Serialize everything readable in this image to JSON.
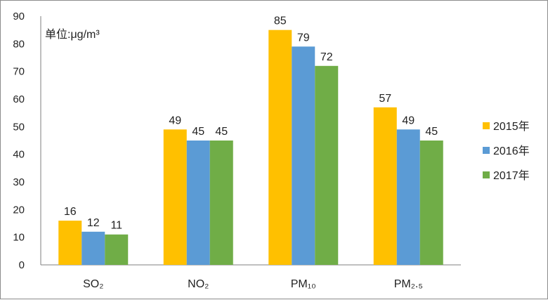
{
  "chart_data": {
    "type": "bar",
    "unit_label": "单位:μg/m³",
    "categories": [
      "SO₂",
      "NO₂",
      "PM₁₀",
      "PM₂.₅"
    ],
    "series": [
      {
        "name": "2015年",
        "color": "#FFC000",
        "values": [
          16,
          49,
          85,
          57
        ]
      },
      {
        "name": "2016年",
        "color": "#5B9BD5",
        "values": [
          12,
          45,
          79,
          49
        ]
      },
      {
        "name": "2017年",
        "color": "#70AD47",
        "values": [
          11,
          45,
          72,
          45
        ]
      }
    ],
    "ylim": [
      0,
      90
    ],
    "yticks": [
      0,
      10,
      20,
      30,
      40,
      50,
      60,
      70,
      80,
      90
    ],
    "grid": false,
    "legend_position": "right"
  }
}
